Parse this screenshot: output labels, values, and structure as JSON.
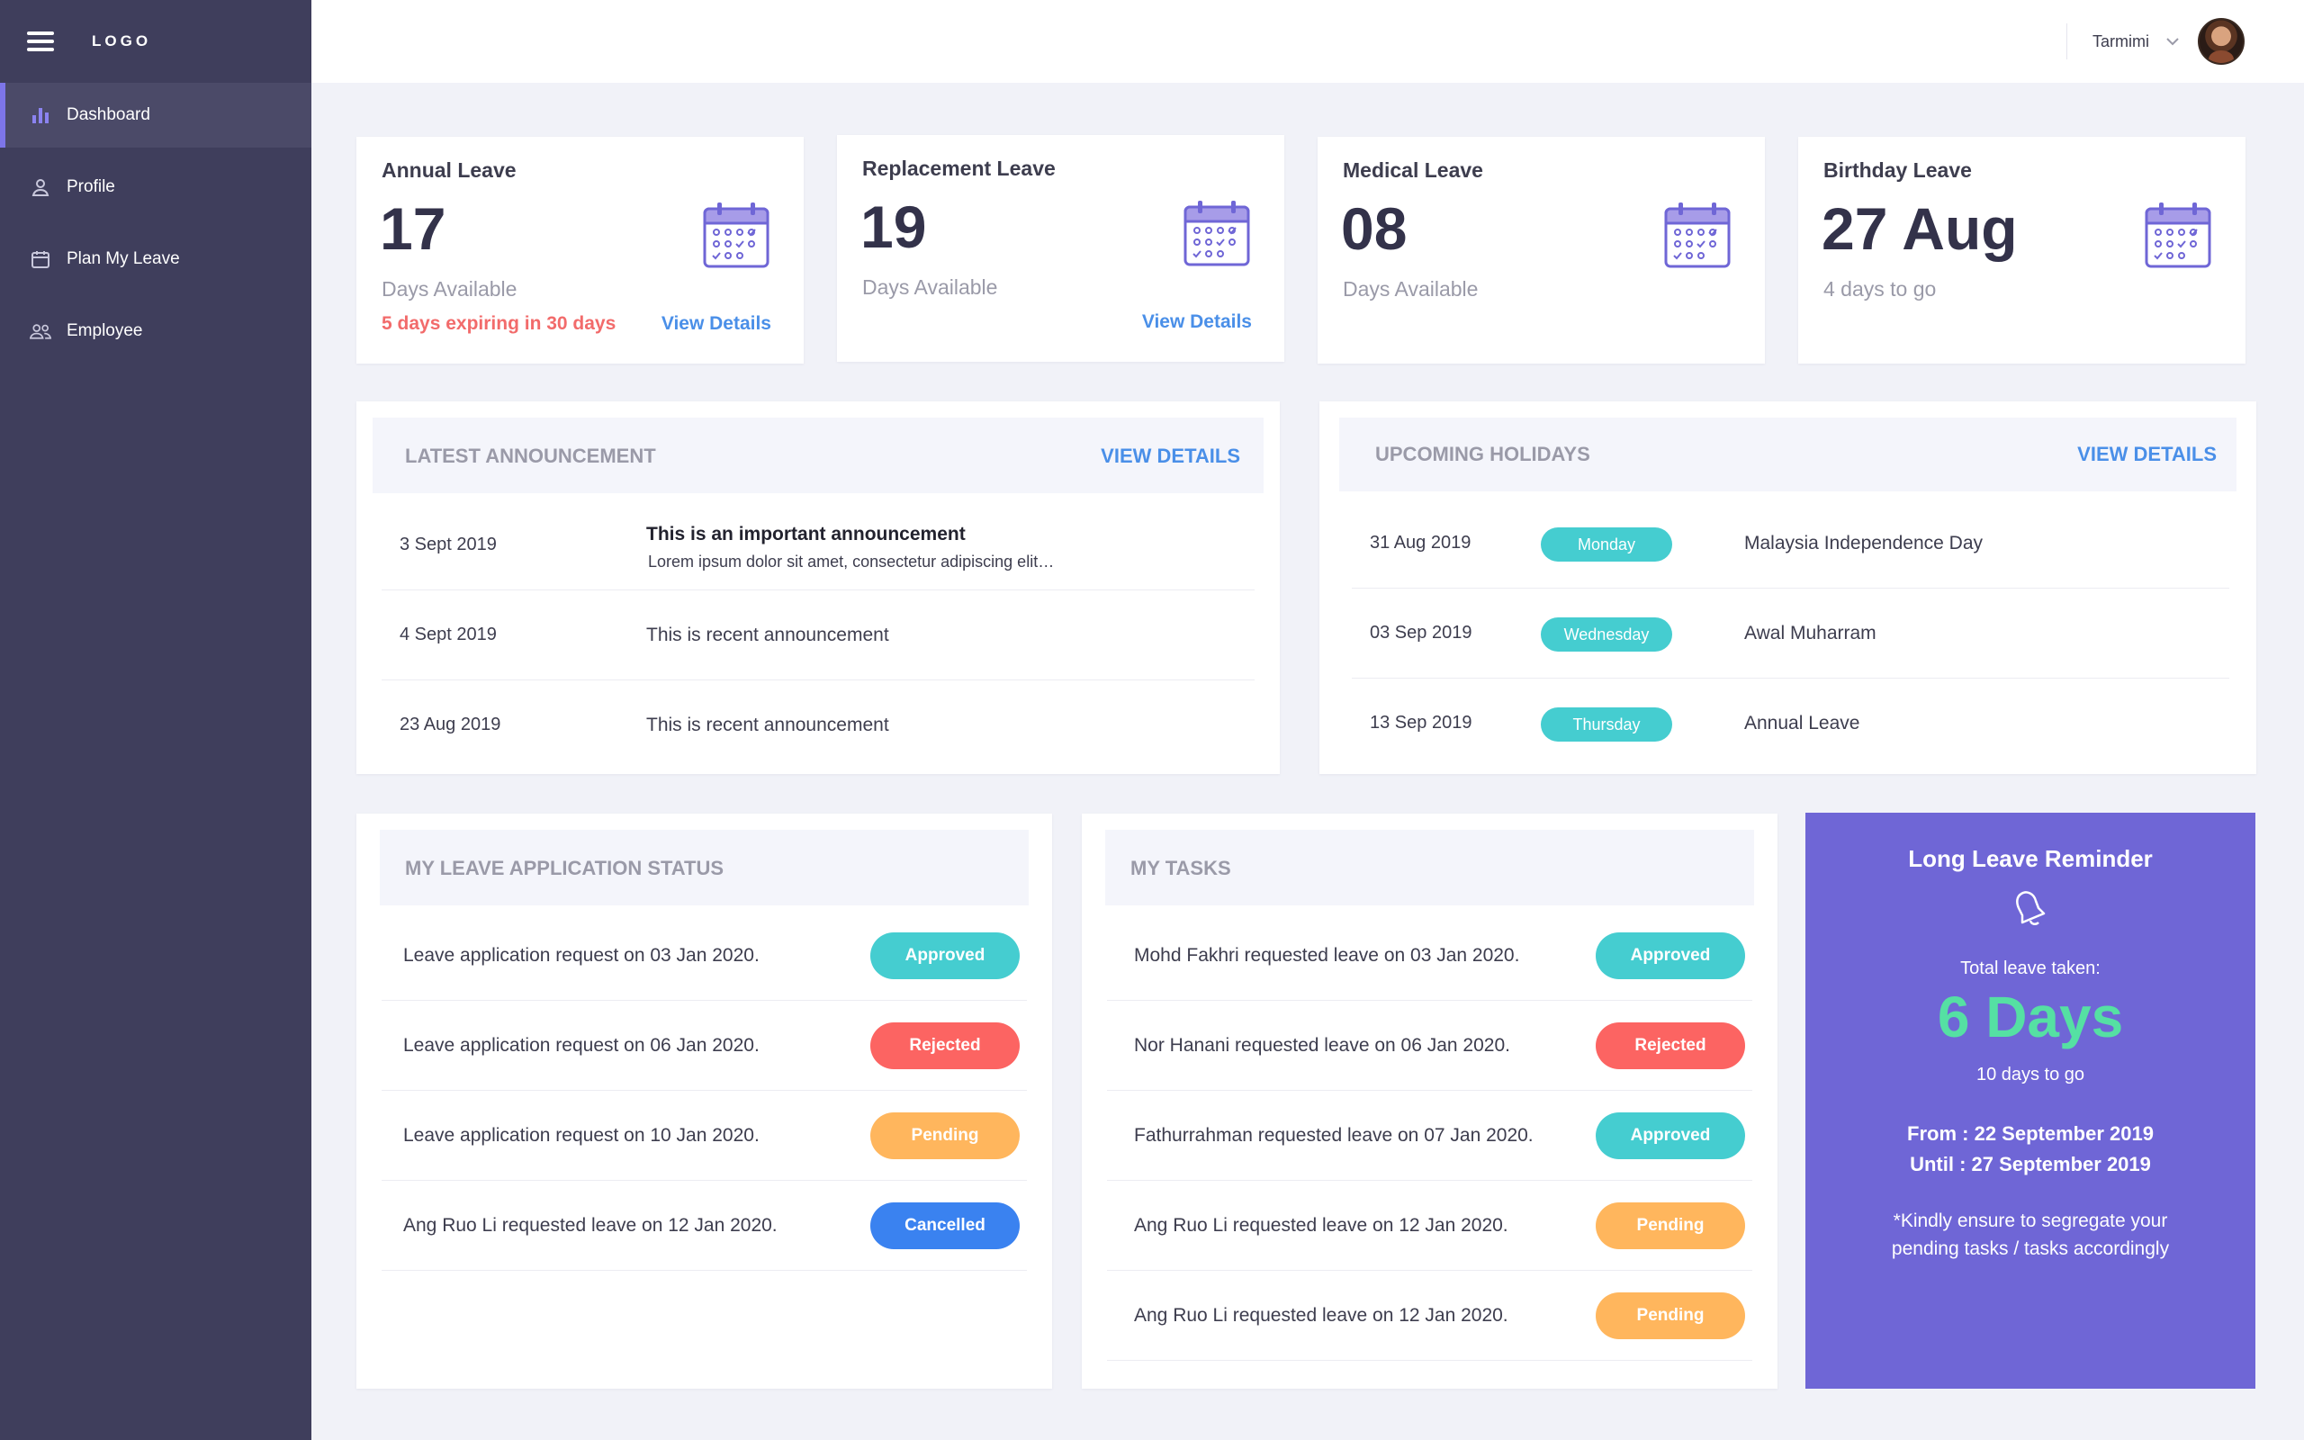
{
  "sidebar": {
    "logo": "LOGO",
    "items": [
      {
        "label": "Dashboard"
      },
      {
        "label": "Profile"
      },
      {
        "label": "Plan My Leave"
      },
      {
        "label": "Employee"
      }
    ]
  },
  "topbar": {
    "user_name": "Tarmimi"
  },
  "leave_cards": [
    {
      "title": "Annual Leave",
      "value": "17",
      "subtitle": "Days Available",
      "expiry": "5 days expiring in 30 days",
      "link": "View Details"
    },
    {
      "title": "Replacement Leave",
      "value": "19",
      "subtitle": "Days Available",
      "link": "View Details"
    },
    {
      "title": "Medical Leave",
      "value": "08",
      "subtitle": "Days Available"
    },
    {
      "title": "Birthday Leave",
      "value": "27 Aug",
      "subtitle": "4 days to go"
    }
  ],
  "announcements": {
    "title": "LATEST ANNOUNCEMENT",
    "link": "VIEW DETAILS",
    "rows": [
      {
        "date": "3 Sept 2019",
        "title": "This is an important announcement",
        "excerpt": "Lorem ipsum dolor sit amet, consectetur adipiscing elit…"
      },
      {
        "date": "4 Sept 2019",
        "text": "This is recent announcement"
      },
      {
        "date": "23 Aug 2019",
        "text": "This is recent announcement"
      }
    ]
  },
  "holidays": {
    "title": "UPCOMING HOLIDAYS",
    "link": "VIEW DETAILS",
    "rows": [
      {
        "date": "31 Aug 2019",
        "day": "Monday",
        "name": "Malaysia Independence Day"
      },
      {
        "date": "03 Sep 2019",
        "day": "Wednesday",
        "name": "Awal Muharram"
      },
      {
        "date": "13 Sep 2019",
        "day": "Thursday",
        "name": "Annual Leave"
      }
    ]
  },
  "leave_status": {
    "title": "MY LEAVE APPLICATION STATUS",
    "rows": [
      {
        "text": "Leave application request on 03 Jan 2020.",
        "status": "Approved"
      },
      {
        "text": "Leave application request on 06 Jan 2020.",
        "status": "Rejected"
      },
      {
        "text": "Leave application request on 10 Jan 2020.",
        "status": "Pending"
      },
      {
        "text": "Ang Ruo Li requested leave on 12 Jan 2020.",
        "status": "Cancelled"
      }
    ]
  },
  "tasks": {
    "title": "MY TASKS",
    "rows": [
      {
        "text": "Mohd Fakhri requested leave on 03 Jan 2020.",
        "status": "Approved"
      },
      {
        "text": "Nor Hanani requested leave on 06 Jan 2020.",
        "status": "Rejected"
      },
      {
        "text": "Fathurrahman requested leave on 07 Jan 2020.",
        "status": "Approved"
      },
      {
        "text": "Ang Ruo Li requested leave on 12 Jan 2020.",
        "status": "Pending"
      },
      {
        "text": "Ang Ruo Li requested leave on 12 Jan 2020.",
        "status": "Pending"
      }
    ]
  },
  "reminder": {
    "title": "Long Leave Reminder",
    "label": "Total leave taken:",
    "days": "6 Days",
    "to_go": "10 days to go",
    "from": "From : 22 September 2019",
    "until": "Until : 27 September 2019",
    "note": "*Kindly ensure to segregate your pending tasks / tasks accordingly"
  },
  "colors": {
    "sidebar": "#3f3e5c",
    "accent": "#7d75e8",
    "link": "#4a8fe8",
    "approved": "#45cdd0",
    "rejected": "#fc6462",
    "pending": "#ffb65d",
    "cancelled": "#3a82f0",
    "reminder": "#6f66d6",
    "reminder_days": "#55e0a3"
  }
}
